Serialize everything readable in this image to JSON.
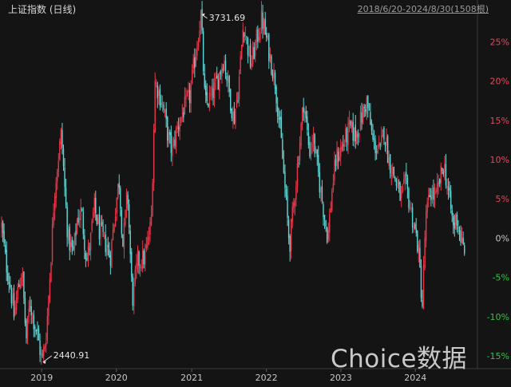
{
  "header": {
    "title": "上证指数 (日线)",
    "range": "2018/6/20-2024/8/30(1508根)"
  },
  "watermark": "Choice数据",
  "chart_data": {
    "type": "line",
    "title": "上证指数 (日线)",
    "subtitle": "2018/6/20-2024/8/30(1508根)",
    "y_unit": "%",
    "ylim": [
      -16,
      29
    ],
    "y_ticks": [
      {
        "value": 25,
        "label": "25%"
      },
      {
        "value": 20,
        "label": "20%"
      },
      {
        "value": 15,
        "label": "15%"
      },
      {
        "value": 10,
        "label": "10%"
      },
      {
        "value": 5,
        "label": "5%"
      },
      {
        "value": 0,
        "label": "0%"
      },
      {
        "value": -5,
        "label": "-5%"
      },
      {
        "value": -10,
        "label": "-10%"
      },
      {
        "value": -15,
        "label": "-15%"
      }
    ],
    "x_ticks": [
      {
        "date": "2019-01-02",
        "label": "2019"
      },
      {
        "date": "2020-01-02",
        "label": "2020"
      },
      {
        "date": "2021-01-04",
        "label": "2021"
      },
      {
        "date": "2022-01-04",
        "label": "2022"
      },
      {
        "date": "2023-01-03",
        "label": "2023"
      },
      {
        "date": "2024-01-02",
        "label": "2024"
      }
    ],
    "x_range": [
      "2018-06-20",
      "2024-08-30"
    ],
    "grid": false,
    "colors": {
      "up": "#e8374a",
      "down": "#5fd6d6",
      "positive_axis": "#e04a5a",
      "negative_axis": "#35c24a"
    },
    "annotations": [
      {
        "label": "3731.69",
        "date": "2021-02-18",
        "value": 28.5
      },
      {
        "label": "2440.91",
        "date": "2019-01-04",
        "value": -15.8
      }
    ],
    "series": [
      {
        "points": [
          [
            "2018-06-20",
            1.5
          ],
          [
            "2018-07-10",
            -3
          ],
          [
            "2018-08-01",
            -6
          ],
          [
            "2018-08-20",
            -10
          ],
          [
            "2018-09-05",
            -7
          ],
          [
            "2018-09-28",
            -4
          ],
          [
            "2018-10-18",
            -13
          ],
          [
            "2018-11-05",
            -8
          ],
          [
            "2018-11-20",
            -10
          ],
          [
            "2018-12-10",
            -12
          ],
          [
            "2019-01-04",
            -15.8
          ],
          [
            "2019-01-25",
            -12
          ],
          [
            "2019-02-15",
            -3
          ],
          [
            "2019-03-05",
            6
          ],
          [
            "2019-04-08",
            13.5
          ],
          [
            "2019-04-25",
            6
          ],
          [
            "2019-05-10",
            0
          ],
          [
            "2019-06-05",
            -2
          ],
          [
            "2019-06-25",
            2.5
          ],
          [
            "2019-07-15",
            3.5
          ],
          [
            "2019-08-10",
            -3
          ],
          [
            "2019-08-30",
            0
          ],
          [
            "2019-09-15",
            4
          ],
          [
            "2019-10-10",
            1
          ],
          [
            "2019-11-15",
            -1
          ],
          [
            "2019-12-03",
            -2.5
          ],
          [
            "2019-12-31",
            4.5
          ],
          [
            "2020-01-15",
            7.5
          ],
          [
            "2020-02-03",
            -1
          ],
          [
            "2020-02-25",
            6
          ],
          [
            "2020-03-20",
            -8
          ],
          [
            "2020-04-15",
            -3
          ],
          [
            "2020-05-20",
            -2.5
          ],
          [
            "2020-06-20",
            2
          ],
          [
            "2020-07-09",
            20
          ],
          [
            "2020-08-15",
            17
          ],
          [
            "2020-09-10",
            13
          ],
          [
            "2020-09-30",
            11
          ],
          [
            "2020-10-25",
            14
          ],
          [
            "2020-11-20",
            16
          ],
          [
            "2020-12-25",
            18
          ],
          [
            "2021-02-18",
            28.5
          ],
          [
            "2021-03-10",
            17
          ],
          [
            "2021-04-10",
            18
          ],
          [
            "2021-05-10",
            20
          ],
          [
            "2021-06-10",
            23
          ],
          [
            "2021-07-28",
            15
          ],
          [
            "2021-08-20",
            19
          ],
          [
            "2021-09-14",
            27.5
          ],
          [
            "2021-10-20",
            22
          ],
          [
            "2021-11-15",
            25
          ],
          [
            "2021-12-13",
            28
          ],
          [
            "2022-01-15",
            24
          ],
          [
            "2022-02-15",
            20
          ],
          [
            "2022-03-15",
            13
          ],
          [
            "2022-04-27",
            -1
          ],
          [
            "2022-05-20",
            5
          ],
          [
            "2022-06-15",
            12
          ],
          [
            "2022-07-05",
            17.5
          ],
          [
            "2022-08-02",
            11
          ],
          [
            "2022-08-20",
            13
          ],
          [
            "2022-09-15",
            8
          ],
          [
            "2022-10-31",
            0
          ],
          [
            "2022-11-20",
            6
          ],
          [
            "2022-12-10",
            10
          ],
          [
            "2023-01-15",
            12
          ],
          [
            "2023-02-15",
            14
          ],
          [
            "2023-03-15",
            13
          ],
          [
            "2023-04-10",
            15
          ],
          [
            "2023-05-09",
            17.5
          ],
          [
            "2023-06-10",
            12
          ],
          [
            "2023-07-15",
            11
          ],
          [
            "2023-08-01",
            14
          ],
          [
            "2023-08-25",
            10
          ],
          [
            "2023-09-20",
            8
          ],
          [
            "2023-10-23",
            5
          ],
          [
            "2023-11-15",
            7
          ],
          [
            "2023-12-15",
            3
          ],
          [
            "2024-01-15",
            -1
          ],
          [
            "2024-02-05",
            -8.7
          ],
          [
            "2024-02-20",
            2
          ],
          [
            "2024-03-15",
            6
          ],
          [
            "2024-04-10",
            5
          ],
          [
            "2024-05-20",
            9.5
          ],
          [
            "2024-06-10",
            6
          ],
          [
            "2024-07-08",
            1
          ],
          [
            "2024-07-20",
            3
          ],
          [
            "2024-08-30",
            -2.5
          ]
        ]
      }
    ]
  }
}
